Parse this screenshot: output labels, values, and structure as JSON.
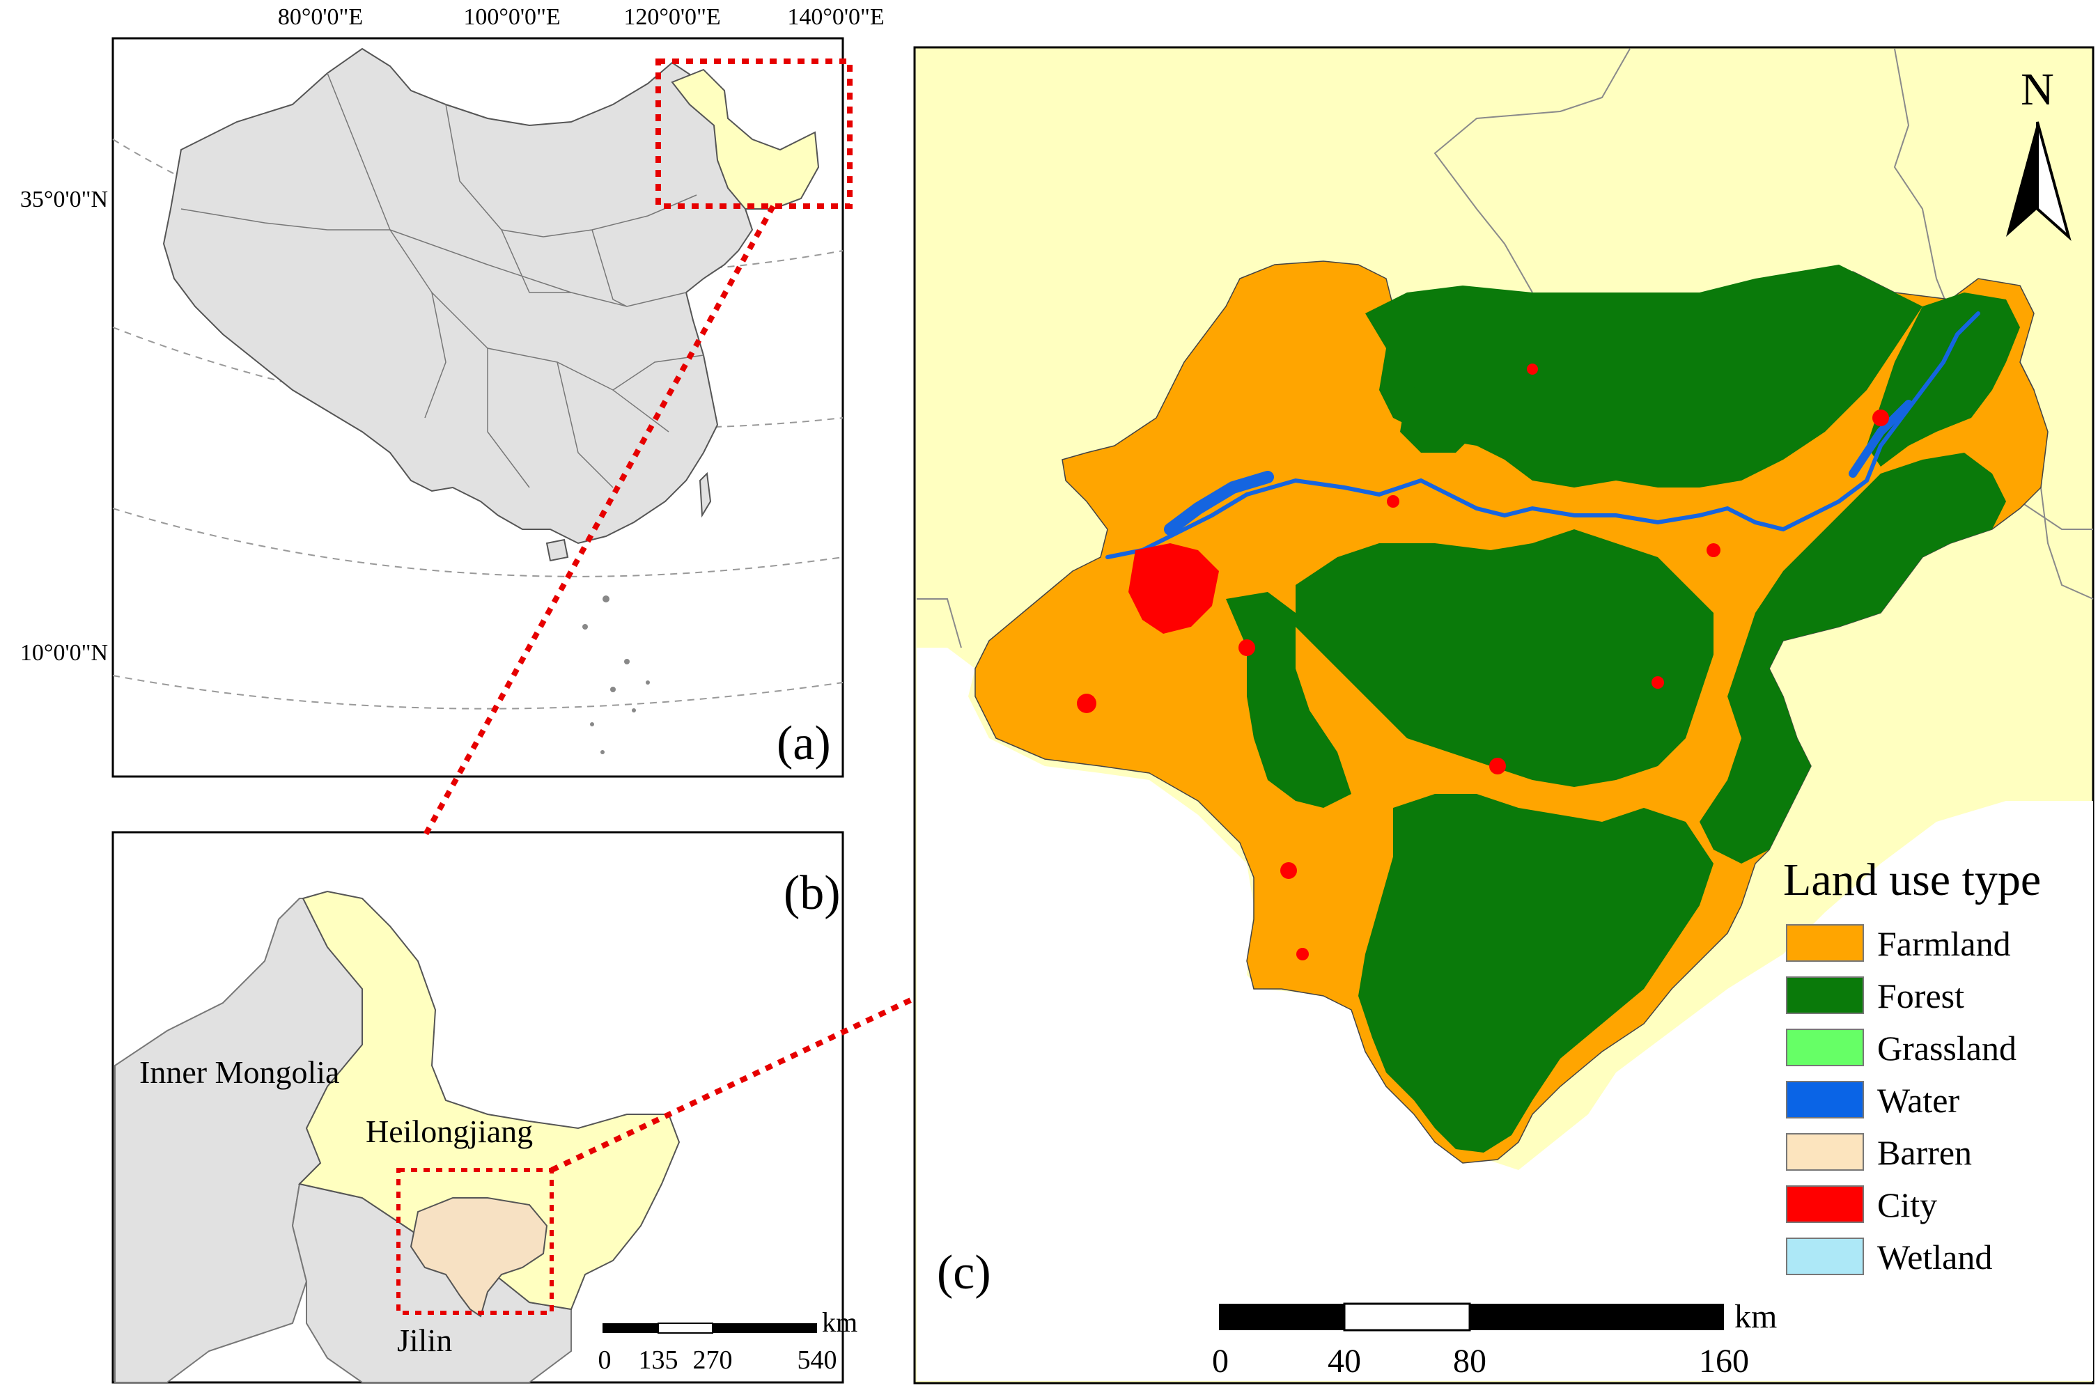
{
  "panel_a": {
    "label": "(a)",
    "lon_ticks": [
      "80°0'0\"E",
      "100°0'0\"E",
      "120°0'0\"E",
      "140°0'0\"E"
    ],
    "lat_ticks": [
      "35°0'0\"N",
      "10°0'0\"N"
    ]
  },
  "panel_b": {
    "label": "(b)",
    "regions": [
      "Inner Mongolia",
      "Heilongjiang",
      "Jilin"
    ],
    "scale": {
      "ticks": [
        "0",
        "135",
        "270",
        "540"
      ],
      "unit": "km"
    }
  },
  "panel_c": {
    "label": "(c)",
    "north": "N",
    "legend": {
      "title": "Land use type",
      "items": [
        {
          "label": "Farmland",
          "color": "#FFA500"
        },
        {
          "label": "Forest",
          "color": "#0A7A0A"
        },
        {
          "label": "Grassland",
          "color": "#66FF66"
        },
        {
          "label": "Water",
          "color": "#0A64E6"
        },
        {
          "label": "Barren",
          "color": "#FCE4BE"
        },
        {
          "label": "City",
          "color": "#FF0000"
        },
        {
          "label": "Wetland",
          "color": "#ADE8F7"
        }
      ]
    },
    "scale": {
      "ticks": [
        "0",
        "40",
        "80",
        "160"
      ],
      "unit": "km"
    }
  },
  "colors": {
    "china_fill": "#E1E1E1",
    "highlight_province": "#FFFFC0",
    "study_area": "#F7E1C3",
    "connector": "#E60000"
  }
}
